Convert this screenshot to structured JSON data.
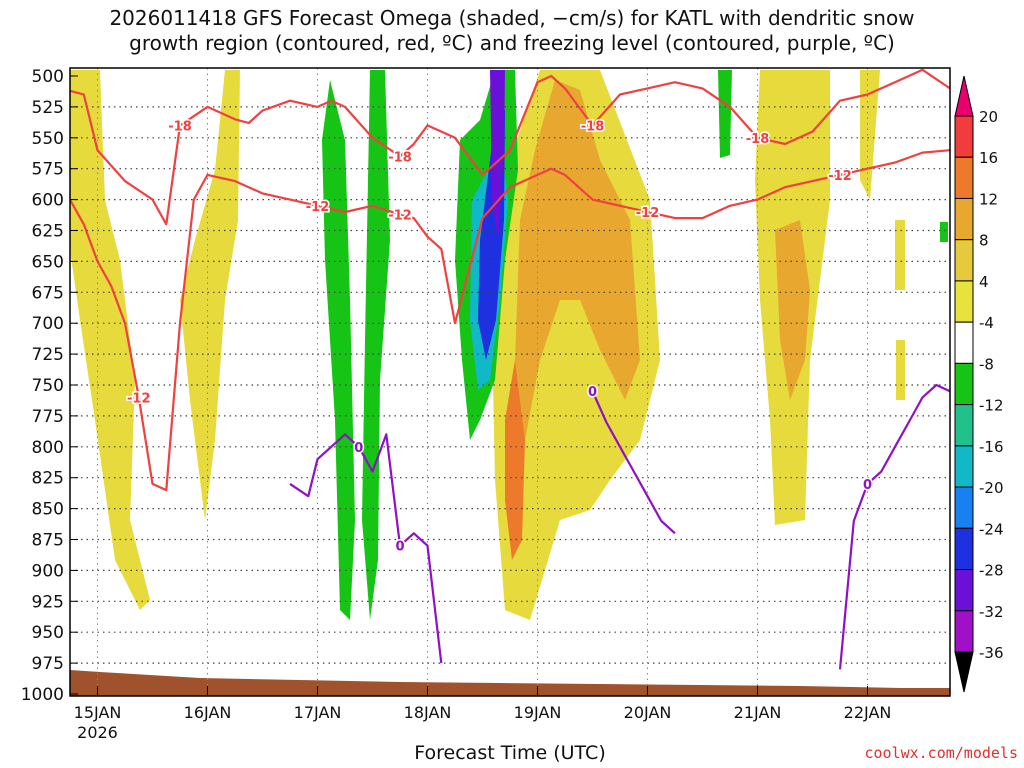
{
  "chart_data": {
    "type": "heatmap",
    "title_lines": [
      "2026011418 GFS Forecast Omega (shaded, −cm/s) for KATL with dendritic snow",
      "growth region (contoured, red, ºC) and freezing level (contoured, purple, ºC)"
    ],
    "xlabel": "Forecast Time (UTC)",
    "ylabel": "",
    "y_ticks": [
      500,
      525,
      550,
      575,
      600,
      625,
      650,
      675,
      700,
      725,
      750,
      775,
      800,
      825,
      850,
      875,
      900,
      925,
      950,
      975,
      1000
    ],
    "y_axis_inverted": true,
    "ylim": [
      1000,
      500
    ],
    "x_ticks": [
      "15JAN",
      "16JAN",
      "17JAN",
      "18JAN",
      "19JAN",
      "20JAN",
      "21JAN",
      "22JAN"
    ],
    "x_year_label": "2026",
    "xlim_hours": [
      -6,
      186
    ],
    "grid": true,
    "colorbar": {
      "levels": [
        20,
        16,
        12,
        8,
        4,
        -4,
        -8,
        -12,
        -16,
        -20,
        -24,
        -28,
        -32,
        -36
      ],
      "colors": [
        "#e8006e",
        "#f03c3c",
        "#ec7a2a",
        "#e8a830",
        "#e6c93c",
        "#e8e23c",
        "#ffffff",
        "#15c415",
        "#22c08a",
        "#10b8c8",
        "#1880f0",
        "#1f30e0",
        "#6a10d8",
        "#a010c8",
        "#a8a8a8",
        "#000000"
      ]
    },
    "series": [
      {
        "name": "-18",
        "color": "#f04040",
        "x": [
          -6,
          -3,
          0,
          6,
          12,
          15,
          18,
          24,
          30,
          33,
          36,
          42,
          48,
          51,
          54,
          60,
          66,
          69,
          72,
          78,
          84,
          90,
          96,
          99,
          102,
          108,
          114,
          120,
          126,
          132,
          138,
          144,
          150,
          156,
          162,
          168,
          174,
          180,
          186
        ],
        "y": [
          512,
          515,
          560,
          585,
          600,
          620,
          540,
          525,
          535,
          538,
          528,
          520,
          525,
          520,
          525,
          550,
          565,
          555,
          540,
          550,
          580,
          560,
          505,
          500,
          510,
          540,
          515,
          510,
          505,
          510,
          525,
          550,
          555,
          545,
          520,
          515,
          505,
          495,
          510
        ]
      },
      {
        "name": "-12",
        "color": "#f04040",
        "x": [
          -6,
          -3,
          0,
          3,
          6,
          9,
          12,
          15,
          18,
          21,
          24,
          30,
          36,
          42,
          48,
          54,
          60,
          66,
          69,
          72,
          75,
          78,
          84,
          90,
          96,
          99,
          102,
          108,
          114,
          120,
          126,
          132,
          138,
          144,
          150,
          156,
          162,
          168,
          174,
          180,
          186
        ],
        "y": [
          600,
          620,
          650,
          670,
          700,
          760,
          830,
          835,
          700,
          600,
          580,
          585,
          595,
          600,
          605,
          610,
          605,
          612,
          615,
          630,
          640,
          700,
          615,
          590,
          580,
          575,
          580,
          600,
          605,
          610,
          615,
          615,
          605,
          600,
          590,
          585,
          580,
          575,
          570,
          562,
          560
        ]
      },
      {
        "name": "0",
        "color": "#9010c8",
        "x": [
          42,
          46,
          48,
          54,
          57,
          60,
          63,
          66,
          69,
          72,
          75
        ],
        "y": [
          830,
          840,
          810,
          790,
          800,
          820,
          790,
          880,
          870,
          880,
          975
        ]
      },
      {
        "name": "0",
        "color": "#9010c8",
        "x": [
          108,
          111,
          114,
          117,
          120,
          123,
          126
        ],
        "y": [
          755,
          780,
          800,
          820,
          840,
          860,
          870
        ]
      },
      {
        "name": "0",
        "color": "#9010c8",
        "x": [
          162,
          165,
          168,
          171,
          174,
          177,
          180,
          183,
          186
        ],
        "y": [
          980,
          860,
          830,
          820,
          800,
          780,
          760,
          750,
          755
        ]
      }
    ],
    "annotations": [
      "-18",
      "-18",
      "-18",
      "-18",
      "-12",
      "-12",
      "-12",
      "-12",
      "-12",
      "0",
      "0",
      "0",
      "0"
    ]
  },
  "credit": "coolwx.com/models"
}
